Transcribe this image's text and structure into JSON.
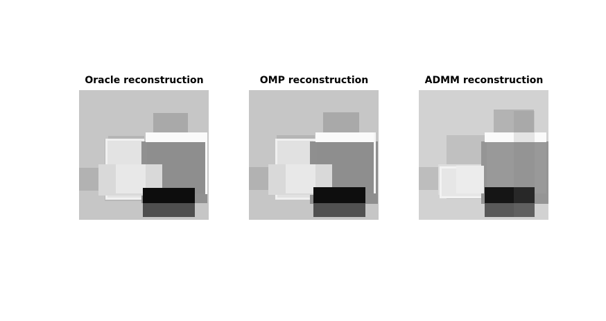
{
  "figure": {
    "panels": [
      {
        "title": "Oracle reconstruction",
        "background": "#c6c6c6"
      },
      {
        "title": "OMP reconstruction",
        "background": "#c6c6c6"
      },
      {
        "title": "ADMM reconstruction",
        "background": "#d2d2d2"
      }
    ]
  }
}
